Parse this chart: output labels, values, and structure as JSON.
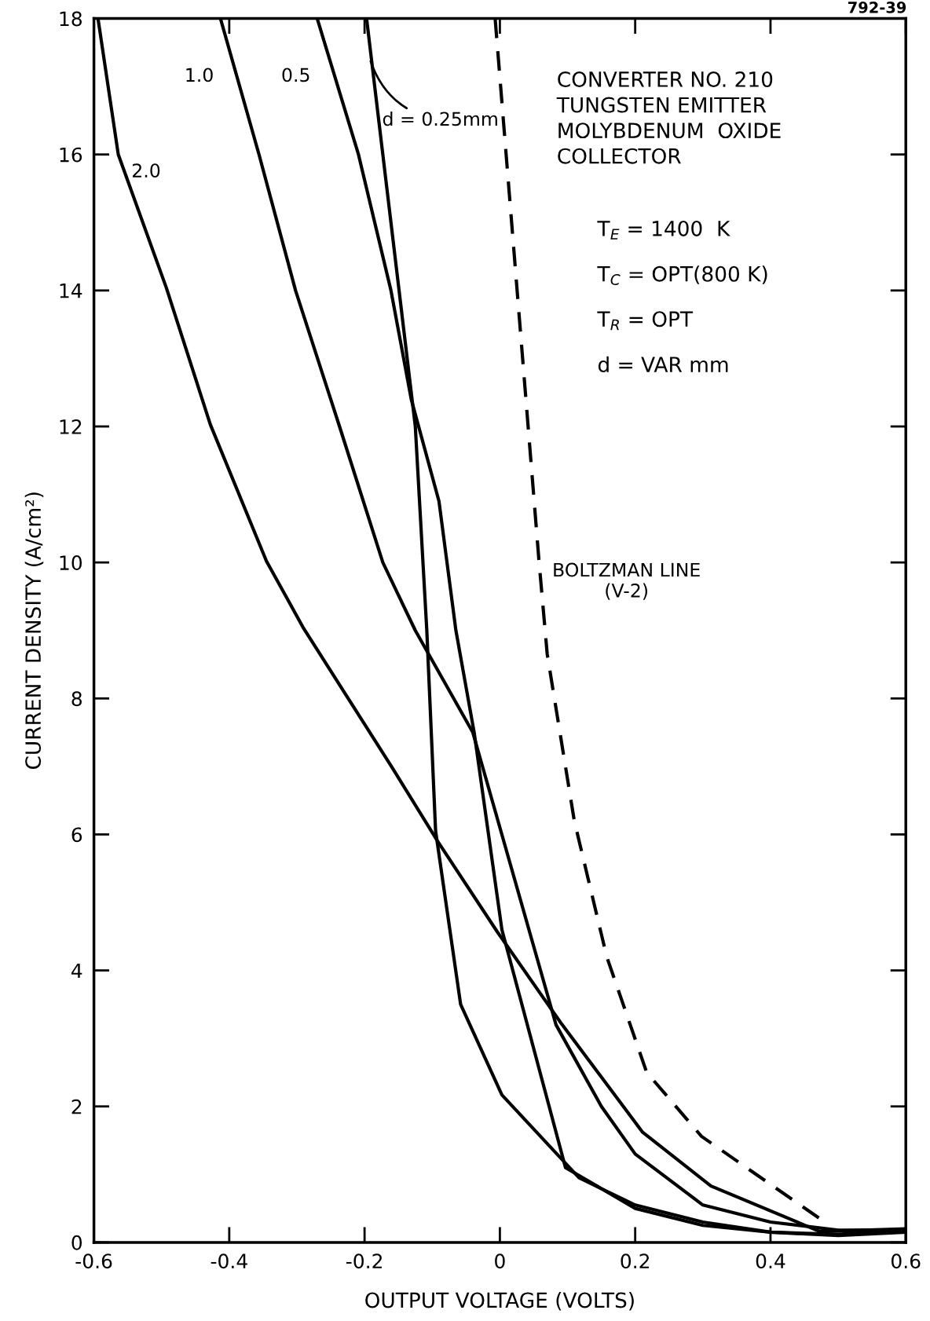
{
  "chart_data": {
    "type": "line",
    "xlabel": "OUTPUT VOLTAGE (VOLTS)",
    "ylabel": "CURRENT DENSITY (A/cm²)",
    "xlim": [
      -0.6,
      0.6
    ],
    "ylim": [
      0,
      18
    ],
    "xticks": [
      -0.6,
      -0.4,
      -0.2,
      0,
      0.2,
      0.4,
      0.6
    ],
    "yticks": [
      0,
      2,
      4,
      6,
      8,
      10,
      12,
      14,
      16,
      18
    ],
    "grid": false,
    "legend": false,
    "marker": "none",
    "series": [
      {
        "name": "2.0",
        "color": "#000000",
        "line_style": "solid",
        "x": [
          -0.594,
          -0.564,
          -0.493,
          -0.428,
          -0.345,
          -0.29,
          -0.159,
          -0.092,
          -0.004,
          0.09,
          0.211,
          0.312,
          0.473,
          0.6
        ],
        "values": [
          18,
          16,
          14.04,
          12.03,
          10.02,
          9.03,
          6.98,
          5.9,
          4.57,
          3.23,
          1.62,
          0.83,
          0.16,
          0.2
        ]
      },
      {
        "name": "1.0",
        "color": "#000000",
        "line_style": "solid",
        "x": [
          -0.413,
          -0.356,
          -0.302,
          -0.237,
          -0.173,
          -0.125,
          -0.04,
          0.083,
          0.15,
          0.2,
          0.3,
          0.4,
          0.5,
          0.6
        ],
        "values": [
          18,
          16,
          14,
          12,
          10,
          9.0,
          7.5,
          3.2,
          2.0,
          1.3,
          0.55,
          0.3,
          0.18,
          0.18
        ]
      },
      {
        "name": "0.5",
        "color": "#000000",
        "line_style": "solid",
        "x": [
          -0.27,
          -0.209,
          -0.161,
          -0.131,
          -0.09,
          -0.065,
          -0.038,
          0.003,
          0.097,
          0.2,
          0.3,
          0.4,
          0.5,
          0.6
        ],
        "values": [
          18,
          16,
          14,
          12.4,
          10.9,
          9.0,
          7.5,
          4.6,
          1.1,
          0.5,
          0.25,
          0.15,
          0.12,
          0.18
        ]
      },
      {
        "name": "d = 0.25mm",
        "color": "#000000",
        "line_style": "solid",
        "x": [
          -0.197,
          -0.173,
          -0.149,
          -0.125,
          -0.108,
          -0.095,
          -0.058,
          0.003,
          0.117,
          0.2,
          0.3,
          0.4,
          0.5,
          0.6
        ],
        "values": [
          18,
          16,
          14,
          12,
          9.0,
          6.05,
          3.5,
          2.17,
          0.95,
          0.55,
          0.3,
          0.15,
          0.1,
          0.15
        ]
      },
      {
        "name": "BOLTZMAN LINE\n(V-2)",
        "color": "#000000",
        "line_style": "dashed",
        "x": [
          -0.007,
          0.058,
          0.07,
          0.11,
          0.158,
          0.217,
          0.298,
          0.48
        ],
        "values": [
          18,
          10,
          8.65,
          6.2,
          4.2,
          2.5,
          1.56,
          0.3
        ]
      }
    ],
    "annotations": [
      "792-39",
      "CONVERTER NO. 210\nTUNGSTEN EMITTER\nMOLYBDENUM  OXIDE\nCOLLECTOR",
      "T$_{E}$ = 1400  K",
      "T$_{C}$ = OPT(800 K)",
      "T$_{R}$ = OPT",
      "d = VAR mm"
    ]
  }
}
